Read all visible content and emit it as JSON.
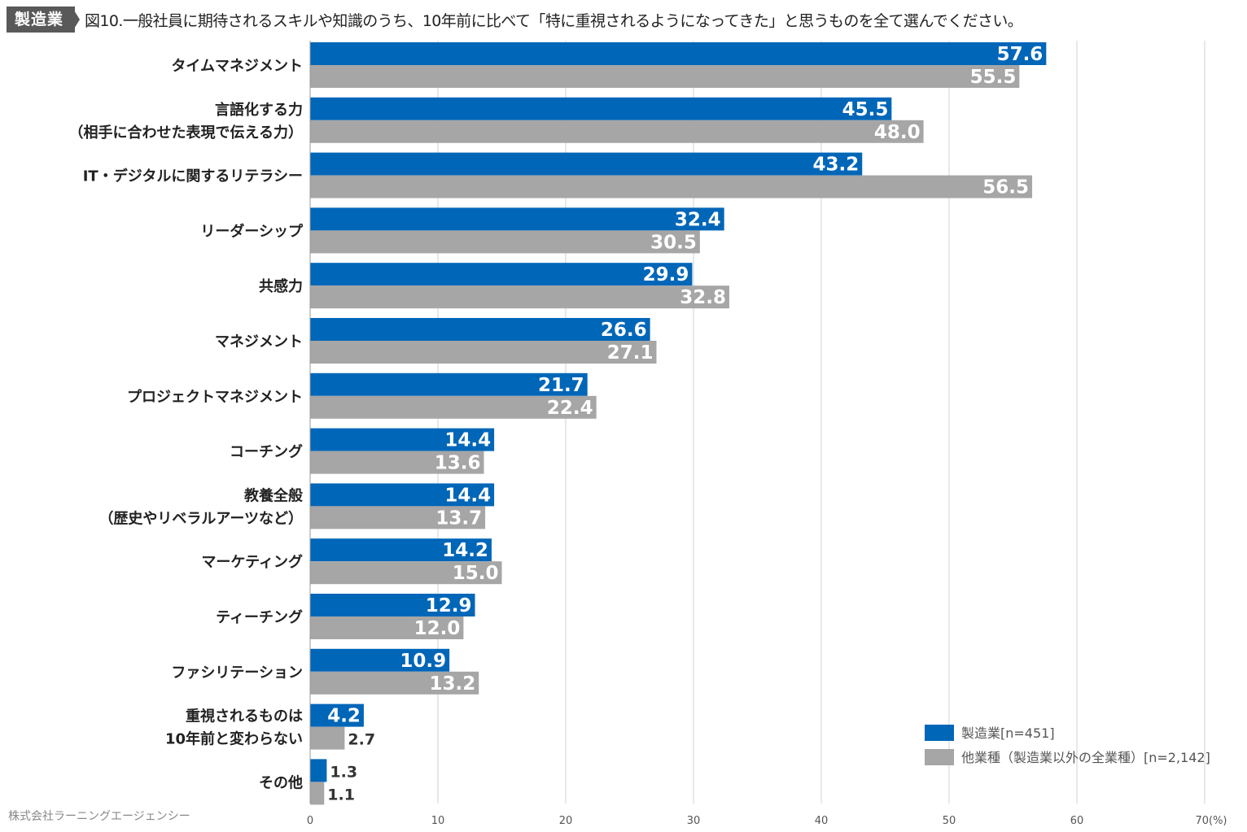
{
  "header": {
    "tag": "製造業",
    "title": "図10.一般社員に期待されるスキルや知識のうち、10年前に比べて「特に重視されるようになってきた」と思うものを全て選んでください。"
  },
  "footer": {
    "company": "株式会社ラーニングエージェンシー"
  },
  "colors": {
    "series1": "#0066b8",
    "series2": "#a6a6a6",
    "grid": "#d0d0d0",
    "text": "#333333"
  },
  "chart_data": {
    "type": "bar",
    "orientation": "horizontal",
    "title": "図10.一般社員に期待されるスキルや知識のうち、10年前に比べて「特に重視されるようになってきた」と思うものを全て選んでください。",
    "categories": [
      [
        "タイムマネジメント"
      ],
      [
        "言語化する力",
        "（相手に合わせた表現で伝える力）"
      ],
      [
        "IT・デジタルに関するリテラシー"
      ],
      [
        "リーダーシップ"
      ],
      [
        "共感力"
      ],
      [
        "マネジメント"
      ],
      [
        "プロジェクトマネジメント"
      ],
      [
        "コーチング"
      ],
      [
        "教養全般",
        "（歴史やリベラルアーツなど）"
      ],
      [
        "マーケティング"
      ],
      [
        "ティーチング"
      ],
      [
        "ファシリテーション"
      ],
      [
        "重視されるものは",
        "10年前と変わらない"
      ],
      [
        "その他"
      ]
    ],
    "series": [
      {
        "name": "製造業[n=451]",
        "color": "#0066b8",
        "values": [
          57.6,
          45.5,
          43.2,
          32.4,
          29.9,
          26.6,
          21.7,
          14.4,
          14.4,
          14.2,
          12.9,
          10.9,
          4.2,
          1.3
        ],
        "labels": [
          "57.6",
          "45.5",
          "43.2",
          "32.4",
          "29.9",
          "26.6",
          "21.7",
          "14.4",
          "14.4",
          "14.2",
          "12.9",
          "10.9",
          "4.2",
          "1.3"
        ]
      },
      {
        "name": "他業種（製造業以外の全業種）[n=2,142]",
        "color": "#a6a6a6",
        "values": [
          55.5,
          48.0,
          56.5,
          30.5,
          32.8,
          27.1,
          22.4,
          13.6,
          13.7,
          15.0,
          12.0,
          13.2,
          2.7,
          1.1
        ],
        "labels": [
          "55.5",
          "48.0",
          "56.5",
          "30.5",
          "32.8",
          "27.1",
          "22.4",
          "13.6",
          "13.7",
          "15.0",
          "12.0",
          "13.2",
          "2.7",
          "1.1"
        ]
      }
    ],
    "xlim": [
      0,
      70
    ],
    "x_ticks": [
      "0",
      "10",
      "20",
      "30",
      "40",
      "50",
      "60",
      "70(%)"
    ],
    "grid": true,
    "legend_position": "bottom-right"
  }
}
